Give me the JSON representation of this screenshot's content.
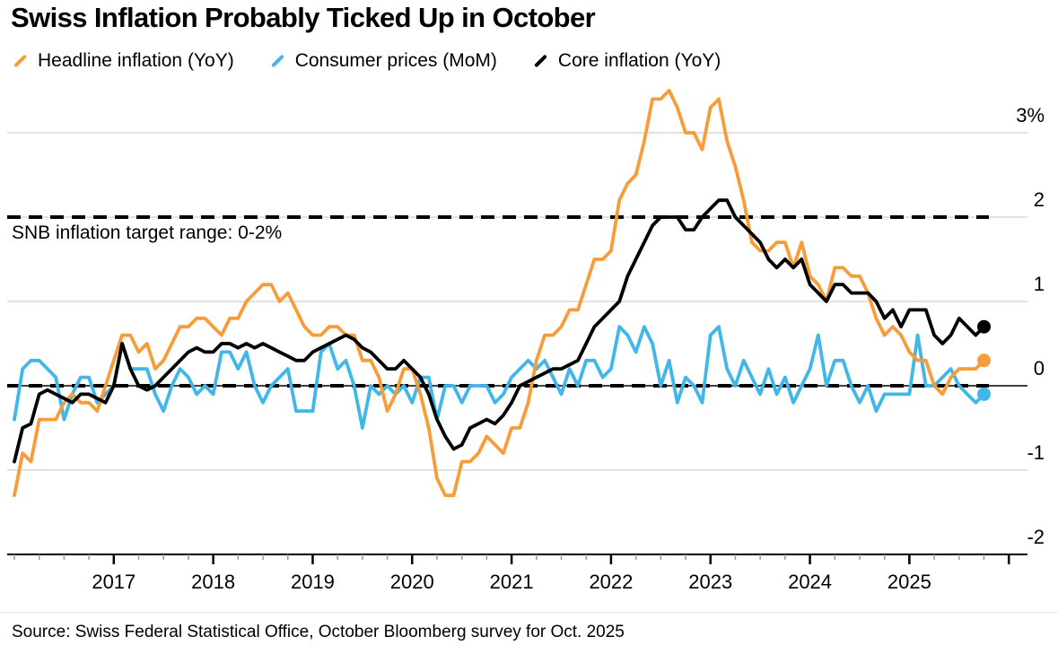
{
  "page": {
    "background": "#FFFFFF"
  },
  "header": {
    "title": "Swiss Inflation Probably Ticked Up in October"
  },
  "footer": {
    "source": "Source: Swiss Federal Statistical Office, October Bloomberg survey for Oct. 2025"
  },
  "chart_data": {
    "type": "line",
    "title": "Swiss Inflation Probably Ticked Up in October",
    "frequency": "monthly",
    "x_start": "2016-01",
    "x_end": "2025-10",
    "x_tick_labels": [
      "2017",
      "2018",
      "2019",
      "2020",
      "2021",
      "2022",
      "2023",
      "2024",
      "2025"
    ],
    "y_ticks": [
      3,
      2,
      1,
      0,
      -1,
      -2
    ],
    "y_tick_labels": [
      "3%",
      "2",
      "1",
      "0",
      "-1",
      "-2"
    ],
    "ylim": [
      -2,
      3.6
    ],
    "grid": "horizontal",
    "legend_position": "top",
    "unit": "percent",
    "last_point_is_forecast": true,
    "reference_lines": [
      {
        "value": 2,
        "style": "dashed",
        "color": "#000000",
        "label": "SNB inflation target range: 0-2%"
      },
      {
        "value": 0,
        "style": "dashed",
        "color": "#000000",
        "label": ""
      },
      {
        "value": 0,
        "style": "solid",
        "color": "#000000",
        "label": ""
      }
    ],
    "series": [
      {
        "name": "Headline inflation (YoY)",
        "color": "#F79C38",
        "end_value": 0.3,
        "values": [
          -1.3,
          -0.8,
          -0.9,
          -0.4,
          -0.4,
          -0.4,
          -0.2,
          -0.1,
          -0.2,
          -0.2,
          -0.3,
          0.0,
          0.3,
          0.6,
          0.6,
          0.4,
          0.5,
          0.2,
          0.3,
          0.5,
          0.7,
          0.7,
          0.8,
          0.8,
          0.7,
          0.6,
          0.8,
          0.8,
          1.0,
          1.1,
          1.2,
          1.2,
          1.0,
          1.1,
          0.9,
          0.7,
          0.6,
          0.6,
          0.7,
          0.7,
          0.6,
          0.6,
          0.3,
          0.3,
          0.1,
          -0.3,
          -0.1,
          0.2,
          0.2,
          -0.1,
          -0.5,
          -1.1,
          -1.3,
          -1.3,
          -0.9,
          -0.9,
          -0.8,
          -0.6,
          -0.7,
          -0.8,
          -0.5,
          -0.5,
          -0.2,
          0.3,
          0.6,
          0.6,
          0.7,
          0.9,
          0.9,
          1.2,
          1.5,
          1.5,
          1.6,
          2.2,
          2.4,
          2.5,
          2.9,
          3.4,
          3.4,
          3.5,
          3.3,
          3.0,
          3.0,
          2.8,
          3.3,
          3.4,
          2.9,
          2.6,
          2.2,
          1.7,
          1.6,
          1.6,
          1.7,
          1.7,
          1.4,
          1.7,
          1.3,
          1.2,
          1.0,
          1.4,
          1.4,
          1.3,
          1.3,
          1.1,
          0.8,
          0.6,
          0.7,
          0.6,
          0.4,
          0.3,
          0.3,
          0.0,
          -0.1,
          0.1,
          0.2,
          0.2,
          0.2,
          0.3
        ]
      },
      {
        "name": "Consumer prices (MoM)",
        "color": "#41B6E8",
        "end_value": -0.1,
        "values": [
          -0.4,
          0.2,
          0.3,
          0.3,
          0.2,
          0.1,
          -0.4,
          -0.1,
          0.1,
          0.1,
          -0.2,
          -0.1,
          0.0,
          0.5,
          0.2,
          0.2,
          0.2,
          -0.1,
          -0.3,
          0.0,
          0.2,
          0.1,
          -0.1,
          0.0,
          -0.1,
          0.4,
          0.4,
          0.2,
          0.4,
          0.0,
          -0.2,
          0.0,
          0.1,
          0.2,
          -0.3,
          -0.3,
          -0.3,
          0.4,
          0.5,
          0.2,
          0.3,
          0.0,
          -0.5,
          0.0,
          -0.1,
          0.0,
          -0.1,
          0.0,
          -0.2,
          0.1,
          0.1,
          -0.4,
          0.0,
          0.0,
          -0.2,
          0.0,
          0.0,
          0.0,
          -0.2,
          -0.1,
          0.1,
          0.2,
          0.3,
          0.2,
          0.3,
          0.1,
          -0.1,
          0.2,
          0.0,
          0.3,
          0.3,
          0.1,
          0.2,
          0.7,
          0.6,
          0.4,
          0.7,
          0.5,
          0.0,
          0.3,
          -0.2,
          0.1,
          0.0,
          -0.2,
          0.6,
          0.7,
          0.2,
          0.0,
          0.3,
          0.1,
          -0.1,
          0.2,
          -0.1,
          0.1,
          -0.2,
          0.0,
          0.2,
          0.6,
          0.0,
          0.3,
          0.3,
          0.0,
          -0.2,
          0.0,
          -0.3,
          -0.1,
          -0.1,
          -0.1,
          -0.1,
          0.6,
          0.0,
          0.0,
          0.1,
          0.2,
          0.0,
          -0.1,
          -0.2,
          -0.1
        ]
      },
      {
        "name": "Core inflation (YoY)",
        "color": "#000000",
        "end_value": 0.7,
        "values": [
          -0.9,
          -0.5,
          -0.45,
          -0.1,
          -0.05,
          -0.1,
          -0.15,
          -0.2,
          -0.1,
          -0.1,
          -0.15,
          -0.2,
          0.0,
          0.5,
          0.2,
          0.0,
          -0.05,
          0.0,
          0.1,
          0.2,
          0.3,
          0.4,
          0.45,
          0.4,
          0.4,
          0.5,
          0.5,
          0.45,
          0.5,
          0.45,
          0.5,
          0.45,
          0.4,
          0.35,
          0.3,
          0.3,
          0.4,
          0.45,
          0.5,
          0.55,
          0.6,
          0.55,
          0.45,
          0.4,
          0.3,
          0.2,
          0.2,
          0.3,
          0.2,
          0.1,
          -0.1,
          -0.4,
          -0.6,
          -0.75,
          -0.7,
          -0.5,
          -0.45,
          -0.4,
          -0.45,
          -0.35,
          -0.2,
          0.0,
          0.05,
          0.1,
          0.15,
          0.2,
          0.2,
          0.25,
          0.3,
          0.5,
          0.7,
          0.8,
          0.9,
          1.0,
          1.3,
          1.5,
          1.7,
          1.9,
          2.0,
          2.0,
          2.0,
          1.85,
          1.85,
          2.0,
          2.1,
          2.2,
          2.2,
          2.0,
          1.9,
          1.8,
          1.7,
          1.5,
          1.4,
          1.5,
          1.4,
          1.5,
          1.2,
          1.1,
          1.0,
          1.2,
          1.2,
          1.1,
          1.1,
          1.1,
          1.0,
          0.8,
          0.9,
          0.7,
          0.9,
          0.9,
          0.9,
          0.6,
          0.5,
          0.6,
          0.8,
          0.7,
          0.6,
          0.7
        ]
      }
    ],
    "colors": {
      "gridline": "#D8D8D8",
      "axis": "#000000",
      "minor_tick": "#999999"
    }
  }
}
